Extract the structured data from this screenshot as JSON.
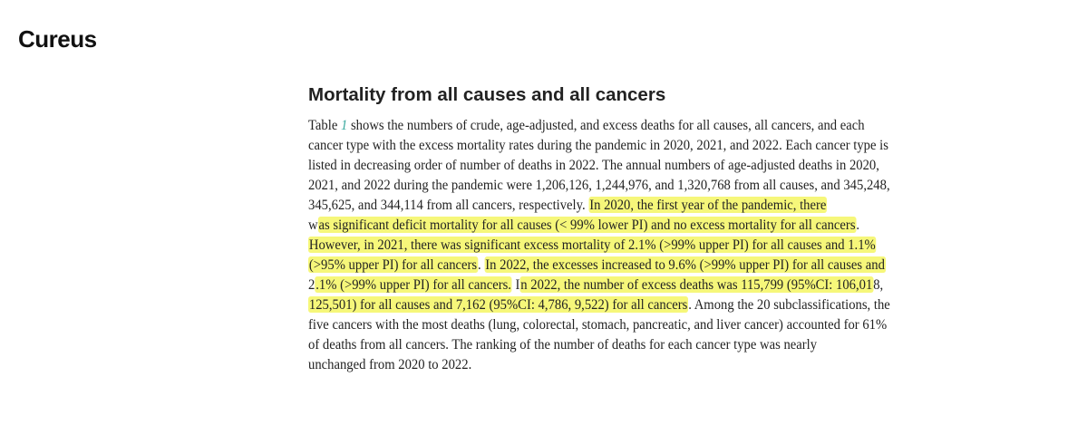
{
  "logo": "Cureus",
  "section_title": "Mortality from all causes and all cancers",
  "paragraph_lines": [
    [
      {
        "t": "Table "
      },
      {
        "t": "1",
        "link": true
      },
      {
        "t": " shows the numbers of crude, age-adjusted, and excess deaths for all causes, all cancers, and each"
      }
    ],
    [
      {
        "t": "cancer type with the excess mortality rates during the pandemic in 2020, 2021, and 2022. Each cancer type is"
      }
    ],
    [
      {
        "t": "listed in decreasing order of number of deaths in 2022. The annual numbers of age-adjusted deaths in 2020,"
      }
    ],
    [
      {
        "t": "2021, and 2022 during the pandemic were 1,206,126, 1,244,976, and 1,320,768 from all causes, and 345,248,"
      }
    ],
    [
      {
        "t": "345,625, and 344,114 from all cancers, respectively. "
      },
      {
        "t": "In 2020, the first year of the pandemic, there",
        "hl": true
      }
    ],
    [
      {
        "t": "w"
      },
      {
        "t": "as significant deficit mortality for all causes (< 99% lower PI) and no excess mortality for all cancers",
        "hl": true
      },
      {
        "t": "."
      }
    ],
    [
      {
        "t": "However, in 2021, there was significant excess mortality of 2.1% (>99% upper PI) for all causes and 1.1%",
        "hl": true
      }
    ],
    [
      {
        "t": "(>95% upper PI) for all cancers",
        "hl": true
      },
      {
        "t": ". "
      },
      {
        "t": "In 2022, the excesses increased to 9.6% (>99% upper PI) for all causes and",
        "hl": true
      }
    ],
    [
      {
        "t": "2"
      },
      {
        "t": ".1% (>99% upper PI) for all cancers.",
        "hl": true
      },
      {
        "t": " I"
      },
      {
        "t": "n 2022, the number of excess deaths was 115,799 (95%CI: 106,01",
        "hl": true
      },
      {
        "t": "8,"
      }
    ],
    [
      {
        "t": "125,501) for all causes and 7,162 (95%CI: 4,786, 9,522) for all cancers",
        "hl": true
      },
      {
        "t": ". Among the 20 subclassifications, the"
      }
    ],
    [
      {
        "t": "five cancers with the most deaths (lung, colorectal, stomach, pancreatic, and liver cancer) accounted for 61%"
      }
    ],
    [
      {
        "t": "of deaths from all cancers. The ranking of the number of deaths for each cancer type was nearly"
      }
    ],
    [
      {
        "t": "unchanged from 2020 to 2022."
      }
    ]
  ],
  "colors": {
    "highlight": "#f6f77a",
    "link": "#3aa99f"
  }
}
